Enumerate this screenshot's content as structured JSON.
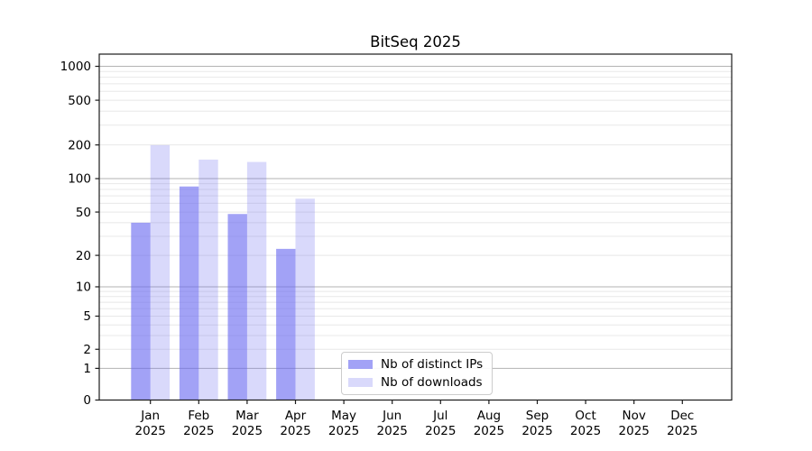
{
  "chart_data": {
    "type": "bar",
    "title": "BitSeq 2025",
    "categories": [
      "Jan",
      "Feb",
      "Mar",
      "Apr",
      "May",
      "Jun",
      "Jul",
      "Aug",
      "Sep",
      "Oct",
      "Nov",
      "Dec"
    ],
    "category_year": "2025",
    "series": [
      {
        "name": "Nb of distinct IPs",
        "color": "rgba(105,105,240,0.62)",
        "values": [
          40,
          85,
          48,
          23,
          0,
          0,
          0,
          0,
          0,
          0,
          0,
          0
        ]
      },
      {
        "name": "Nb of downloads",
        "color": "rgba(105,105,240,0.25)",
        "values": [
          199,
          148,
          141,
          66,
          0,
          0,
          0,
          0,
          0,
          0,
          0,
          0
        ]
      }
    ],
    "y_axis": {
      "scale": "symlog",
      "ticks": [
        0,
        1,
        2,
        5,
        10,
        20,
        50,
        100,
        200,
        500,
        1000
      ],
      "minor_ticks": [
        3,
        4,
        6,
        7,
        8,
        9,
        30,
        40,
        60,
        70,
        80,
        90,
        300,
        400,
        600,
        700,
        800,
        900
      ],
      "range": [
        0,
        1280
      ]
    },
    "grid": true,
    "legend_position": "lower center"
  },
  "colors": {
    "major_grid": "#b3b3b3",
    "minor_grid": "#e8e8e8",
    "axis": "#1a1a1a",
    "tick_text": "#000000",
    "background": "#ffffff"
  }
}
